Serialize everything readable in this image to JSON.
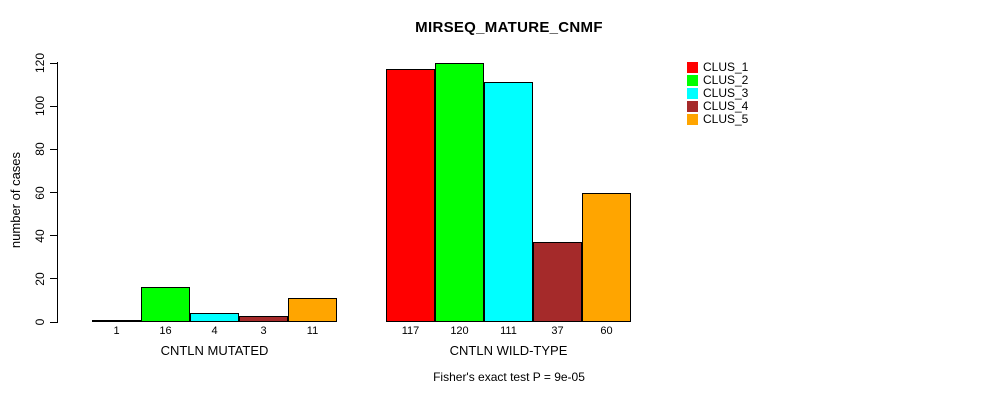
{
  "chart_data": {
    "type": "bar",
    "title": "MIRSEQ_MATURE_CNMF",
    "ylabel": "number of cases",
    "ylim": [
      0,
      120
    ],
    "yticks": [
      0,
      20,
      40,
      60,
      80,
      100,
      120
    ],
    "grid": false,
    "legend_position": "top-right",
    "categories": [
      "CNTLN MUTATED",
      "CNTLN WILD-TYPE"
    ],
    "series": [
      {
        "name": "CLUS_1",
        "color": "#ff0000",
        "values": [
          1,
          117
        ]
      },
      {
        "name": "CLUS_2",
        "color": "#00ff00",
        "values": [
          16,
          120
        ]
      },
      {
        "name": "CLUS_3",
        "color": "#00ffff",
        "values": [
          4,
          111
        ]
      },
      {
        "name": "CLUS_4",
        "color": "#a52a2a",
        "values": [
          3,
          37
        ]
      },
      {
        "name": "CLUS_5",
        "color": "#ffa500",
        "values": [
          11,
          60
        ]
      }
    ],
    "show_bar_values": true,
    "footnote": "Fisher's exact test P = 9e-05"
  }
}
